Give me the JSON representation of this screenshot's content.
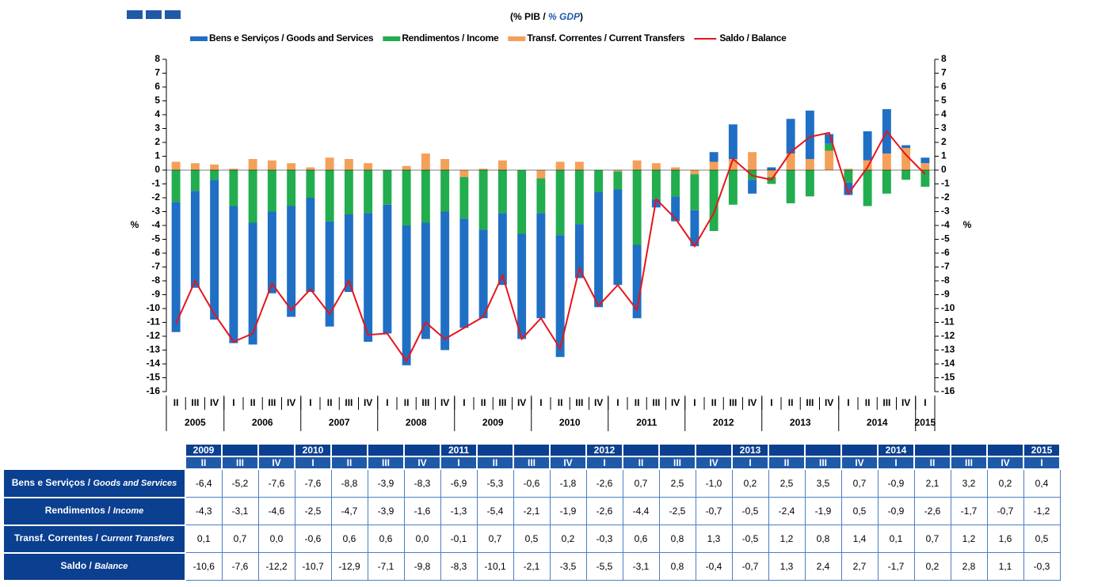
{
  "chart_data": {
    "type": "bar",
    "subtitle_parts": [
      "(% PIB / ",
      "% GDP",
      ")"
    ],
    "ylabel": "%",
    "y2label": "%",
    "categories": [
      "II",
      "III",
      "IV",
      "I",
      "II",
      "III",
      "IV",
      "I",
      "II",
      "III",
      "IV",
      "I",
      "II",
      "III",
      "IV",
      "I",
      "II",
      "III",
      "IV",
      "I",
      "II",
      "III",
      "IV",
      "I",
      "II",
      "III",
      "IV",
      "I",
      "II",
      "III",
      "IV",
      "I",
      "II",
      "III",
      "IV",
      "I",
      "II",
      "III",
      "IV",
      "I"
    ],
    "year_labels": [
      "2005",
      "2006",
      "2007",
      "2008",
      "2009",
      "2010",
      "2011",
      "2012",
      "2013",
      "2014",
      "2015"
    ],
    "ylim": [
      -16,
      8
    ],
    "yticks": [
      -16,
      -15,
      -14,
      -13,
      -12,
      -11,
      -10,
      -9,
      -8,
      -7,
      -6,
      -5,
      -4,
      -3,
      -2,
      -1,
      0,
      1,
      2,
      3,
      4,
      5,
      6,
      7,
      8
    ],
    "y2lim": [
      -16,
      8
    ],
    "y2ticks": [
      -16,
      -15,
      -14,
      -13,
      -12,
      -11,
      -10,
      -9,
      -8,
      -7,
      -6,
      -5,
      -4,
      -3,
      -2,
      -1,
      0,
      1,
      2,
      3,
      4,
      5,
      6,
      7,
      8
    ],
    "legend": "top",
    "series": [
      {
        "name": "Bens e Serviços / Goods and Services",
        "type": "bar",
        "color": "#1f6fc5",
        "values": [
          -9.4,
          -7.0,
          -10.1,
          -9.9,
          -8.8,
          -5.9,
          -8.0,
          -6.8,
          -7.6,
          -5.6,
          -9.3,
          -9.3,
          -10.1,
          -8.4,
          -10.0,
          -7.9,
          -6.4,
          -5.2,
          -7.6,
          -7.6,
          -8.8,
          -3.9,
          -8.3,
          -6.9,
          -5.3,
          -0.6,
          -1.8,
          -2.6,
          0.7,
          2.5,
          -1.0,
          0.2,
          2.5,
          3.5,
          0.7,
          -0.9,
          2.1,
          3.2,
          0.2,
          0.4
        ]
      },
      {
        "name": "Rendimentos / Income",
        "type": "bar",
        "color": "#22ad4e",
        "values": [
          -2.3,
          -1.5,
          -0.7,
          -2.6,
          -3.8,
          -3.0,
          -2.6,
          -2.0,
          -3.7,
          -3.2,
          -3.1,
          -2.5,
          -4.0,
          -3.8,
          -3.0,
          -3.0,
          -4.3,
          -3.1,
          -4.6,
          -2.5,
          -4.7,
          -3.9,
          -1.6,
          -1.3,
          -5.4,
          -2.1,
          -1.9,
          -2.6,
          -4.4,
          -2.5,
          -0.7,
          -0.5,
          -2.4,
          -1.9,
          0.5,
          -0.9,
          -2.6,
          -1.7,
          -0.7,
          -1.2
        ]
      },
      {
        "name": "Transf. Correntes / Current Transfers",
        "type": "bar",
        "color": "#f4a05a",
        "values": [
          0.6,
          0.5,
          0.4,
          0.1,
          0.8,
          0.7,
          0.5,
          0.2,
          0.9,
          0.8,
          0.5,
          0.0,
          0.3,
          1.2,
          0.8,
          -0.5,
          0.1,
          0.7,
          0.0,
          -0.6,
          0.6,
          0.6,
          0.0,
          -0.1,
          0.7,
          0.5,
          0.2,
          -0.3,
          0.6,
          0.8,
          1.3,
          -0.5,
          1.2,
          0.8,
          1.4,
          0.1,
          0.7,
          1.2,
          1.6,
          0.5
        ]
      },
      {
        "name": "Saldo / Balance",
        "type": "line",
        "color": "#e8141c",
        "values": [
          -11.1,
          -8.0,
          -10.4,
          -12.4,
          -11.8,
          -8.2,
          -10.1,
          -8.6,
          -10.4,
          -8.0,
          -11.9,
          -11.8,
          -13.8,
          -11.0,
          -12.2,
          -11.4,
          -10.6,
          -7.6,
          -12.2,
          -10.7,
          -12.9,
          -7.1,
          -9.8,
          -8.3,
          -10.1,
          -2.1,
          -3.5,
          -5.5,
          -3.1,
          0.8,
          -0.4,
          -0.7,
          1.3,
          2.4,
          2.7,
          -1.7,
          0.2,
          2.8,
          1.1,
          -0.3
        ]
      }
    ]
  },
  "table": {
    "years": [
      "2009",
      null,
      null,
      "2010",
      null,
      null,
      null,
      "2011",
      null,
      null,
      null,
      "2012",
      null,
      null,
      null,
      "2013",
      null,
      null,
      null,
      "2014",
      null,
      null,
      null,
      "2015"
    ],
    "quarters": [
      "II",
      "III",
      "IV",
      "I",
      "II",
      "III",
      "IV",
      "I",
      "II",
      "III",
      "IV",
      "I",
      "II",
      "III",
      "IV",
      "I",
      "II",
      "III",
      "IV",
      "I",
      "II",
      "III",
      "IV",
      "I"
    ],
    "rows": [
      {
        "label": "Bens e Serviços / ",
        "label_en": "Goods and Services",
        "values": [
          "-6,4",
          "-5,2",
          "-7,6",
          "-7,6",
          "-8,8",
          "-3,9",
          "-8,3",
          "-6,9",
          "-5,3",
          "-0,6",
          "-1,8",
          "-2,6",
          "0,7",
          "2,5",
          "-1,0",
          "0,2",
          "2,5",
          "3,5",
          "0,7",
          "-0,9",
          "2,1",
          "3,2",
          "0,2",
          "0,4"
        ]
      },
      {
        "label": "Rendimentos / ",
        "label_en": "Income",
        "values": [
          "-4,3",
          "-3,1",
          "-4,6",
          "-2,5",
          "-4,7",
          "-3,9",
          "-1,6",
          "-1,3",
          "-5,4",
          "-2,1",
          "-1,9",
          "-2,6",
          "-4,4",
          "-2,5",
          "-0,7",
          "-0,5",
          "-2,4",
          "-1,9",
          "0,5",
          "-0,9",
          "-2,6",
          "-1,7",
          "-0,7",
          "-1,2"
        ]
      },
      {
        "label": "Transf. Correntes / ",
        "label_en": "Current Transfers",
        "values": [
          "0,1",
          "0,7",
          "0,0",
          "-0,6",
          "0,6",
          "0,6",
          "0,0",
          "-0,1",
          "0,7",
          "0,5",
          "0,2",
          "-0,3",
          "0,6",
          "0,8",
          "1,3",
          "-0,5",
          "1,2",
          "0,8",
          "1,4",
          "0,1",
          "0,7",
          "1,2",
          "1,6",
          "0,5"
        ]
      },
      {
        "label": "Saldo / ",
        "label_en": "Balance",
        "values": [
          "-10,6",
          "-7,6",
          "-12,2",
          "-10,7",
          "-12,9",
          "-7,1",
          "-9,8",
          "-8,3",
          "-10,1",
          "-2,1",
          "-3,5",
          "-5,5",
          "-3,1",
          "0,8",
          "-0,4",
          "-0,7",
          "1,3",
          "2,4",
          "2,7",
          "-1,7",
          "0,2",
          "2,8",
          "1,1",
          "-0,3"
        ]
      }
    ]
  }
}
